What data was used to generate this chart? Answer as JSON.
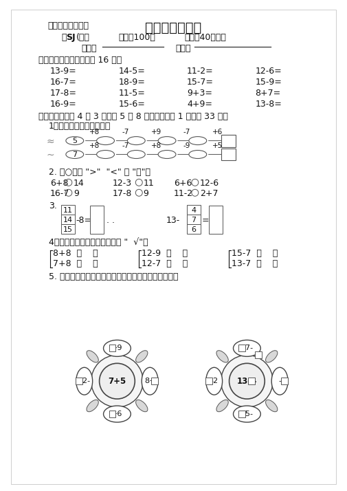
{
  "bg_color": "#ffffff",
  "text_color": "#111111",
  "title": "第一单元测试卷",
  "left_header": "一年级数学（下）",
  "sj_bold": "SJ",
  "sj_post": "(版）",
  "full_score": "满分：100分",
  "time_str": "时间：40分钟）",
  "name_label": "姓名：",
  "score_label": "得分：",
  "sec1_title": "一、直接写出得数。（共 16 分）",
  "sec1_eqs": [
    [
      "13-9=",
      "14-5=",
      "11-2=",
      "12-6="
    ],
    [
      "16-7=",
      "18-9=",
      "15-7=",
      "15-9="
    ],
    [
      "17-8=",
      "11-5=",
      "9+3=",
      "8+7="
    ],
    [
      "16-9=",
      "15-6=",
      "4+9=",
      "13-8="
    ]
  ],
  "sec2_title": "二、填空。（第 4 题 3 分，第 5 题 8 分，其余每空 1 分，共 33 分）",
  "q1_title": "1．比比谁先到达目的地。",
  "q1_row1_start": "5",
  "q1_row1_ops": [
    "+8",
    "-7",
    "+9",
    "-7",
    "+6"
  ],
  "q1_row2_start": "7",
  "q1_row2_ops": [
    "+8",
    "-7",
    "+8",
    "-9",
    "+5"
  ],
  "q2_title": "2. 在○里填 > < 或 =。",
  "q3_left": [
    "11",
    "14",
    "15"
  ],
  "q3_right": [
    "4",
    "7",
    "6"
  ],
  "q4_title": "4．在每组得数大的算式后面画    √。",
  "q4_g1": [
    "8+8  （    ）",
    "7+8  （    ）"
  ],
  "q4_g2": [
    "12-9  （    ）",
    "12-7  （    ）"
  ],
  "q4_g3": [
    "15-7  （    ）",
    "13-7  （    ）"
  ],
  "q5_title": "5. 在口里填数，使花瓣上的得数和花蕊上的得数相等。"
}
